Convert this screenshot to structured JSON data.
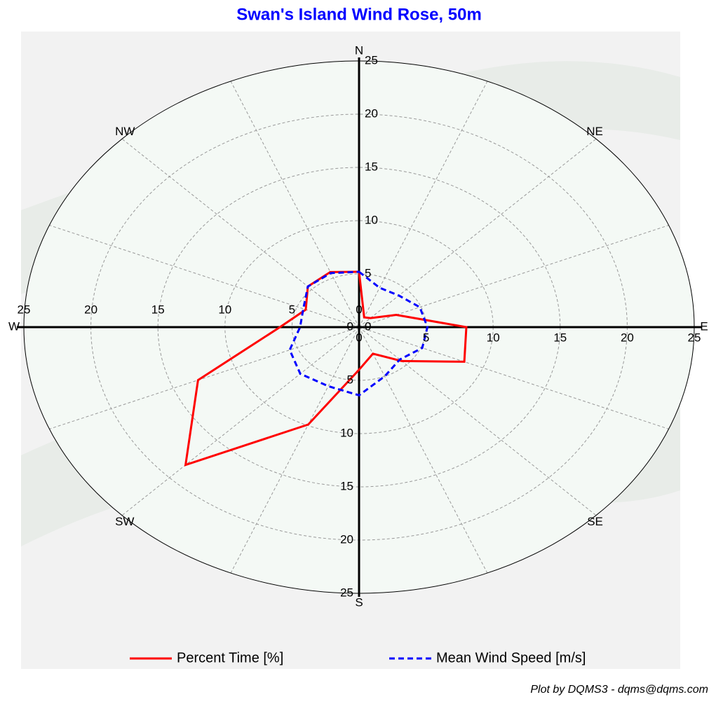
{
  "chart_data": {
    "type": "radar",
    "title": "Swan's Island Wind Rose, 50m",
    "footer": "Plot by DQMS3 - dqms@dqms.com",
    "categories": [
      "N",
      null,
      "NE",
      null,
      "E",
      null,
      "SE",
      null,
      "S",
      null,
      "SW",
      null,
      "W",
      null,
      "NW",
      null
    ],
    "rlim": [
      0,
      25
    ],
    "rticks": [
      0,
      5,
      10,
      15,
      20,
      25
    ],
    "grid": true,
    "series": [
      {
        "name": "Percent Time [%]",
        "color": "#ff0000",
        "dash": false,
        "values": [
          5.2,
          1.0,
          1.2,
          3.0,
          8.0,
          8.5,
          4.5,
          2.7,
          4.0,
          9.9,
          18.3,
          13.0,
          5.9,
          4.3,
          5.4,
          5.6
        ]
      },
      {
        "name": "Mean Wind Speed [m/s]",
        "color": "#0000ff",
        "dash": true,
        "values": [
          5.2,
          4.0,
          4.2,
          4.9,
          5.1,
          5.1,
          4.3,
          5.0,
          6.4,
          6.0,
          6.2,
          5.6,
          4.4,
          4.5,
          5.4,
          5.5
        ]
      }
    ]
  }
}
